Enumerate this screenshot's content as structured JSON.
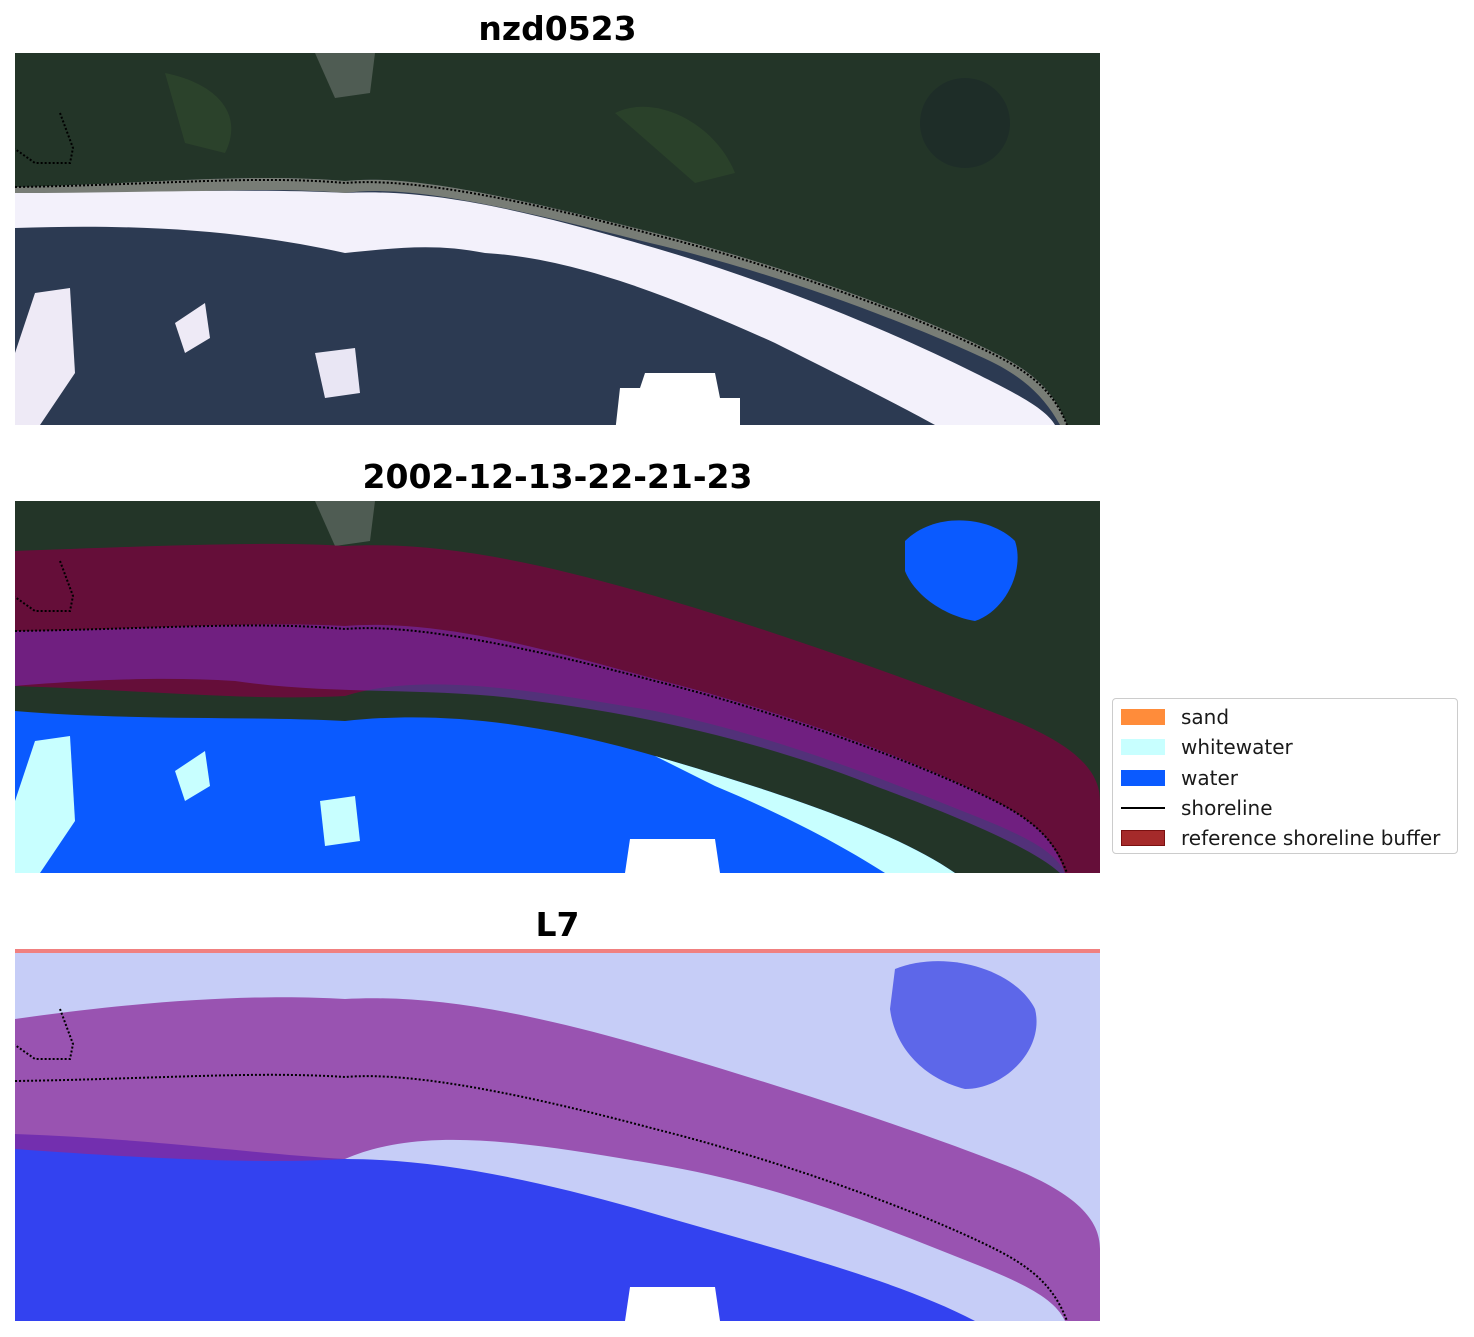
{
  "panels": [
    {
      "title": "nzd0523"
    },
    {
      "title": "2002-12-13-22-21-23"
    },
    {
      "title": "L7"
    }
  ],
  "legend": {
    "items": [
      {
        "label": "sand",
        "color": "#ff8c3a",
        "kind": "patch"
      },
      {
        "label": "whitewater",
        "color": "#c8ffff",
        "kind": "patch"
      },
      {
        "label": "water",
        "color": "#0a5aff",
        "kind": "patch"
      },
      {
        "label": "shoreline",
        "color": "#000000",
        "kind": "line"
      },
      {
        "label": "reference shoreline buffer",
        "color": "#a52a2a",
        "kind": "patch"
      }
    ]
  },
  "colors": {
    "forest": "#233528",
    "ocean": "#2c3a52",
    "surf": "#f3f1fb",
    "water_class": "#0a5aff",
    "whitewater_class": "#c8ffff",
    "buffer": "#800040",
    "index_background": "#c6cdf7",
    "index_water": "#2233ee"
  }
}
